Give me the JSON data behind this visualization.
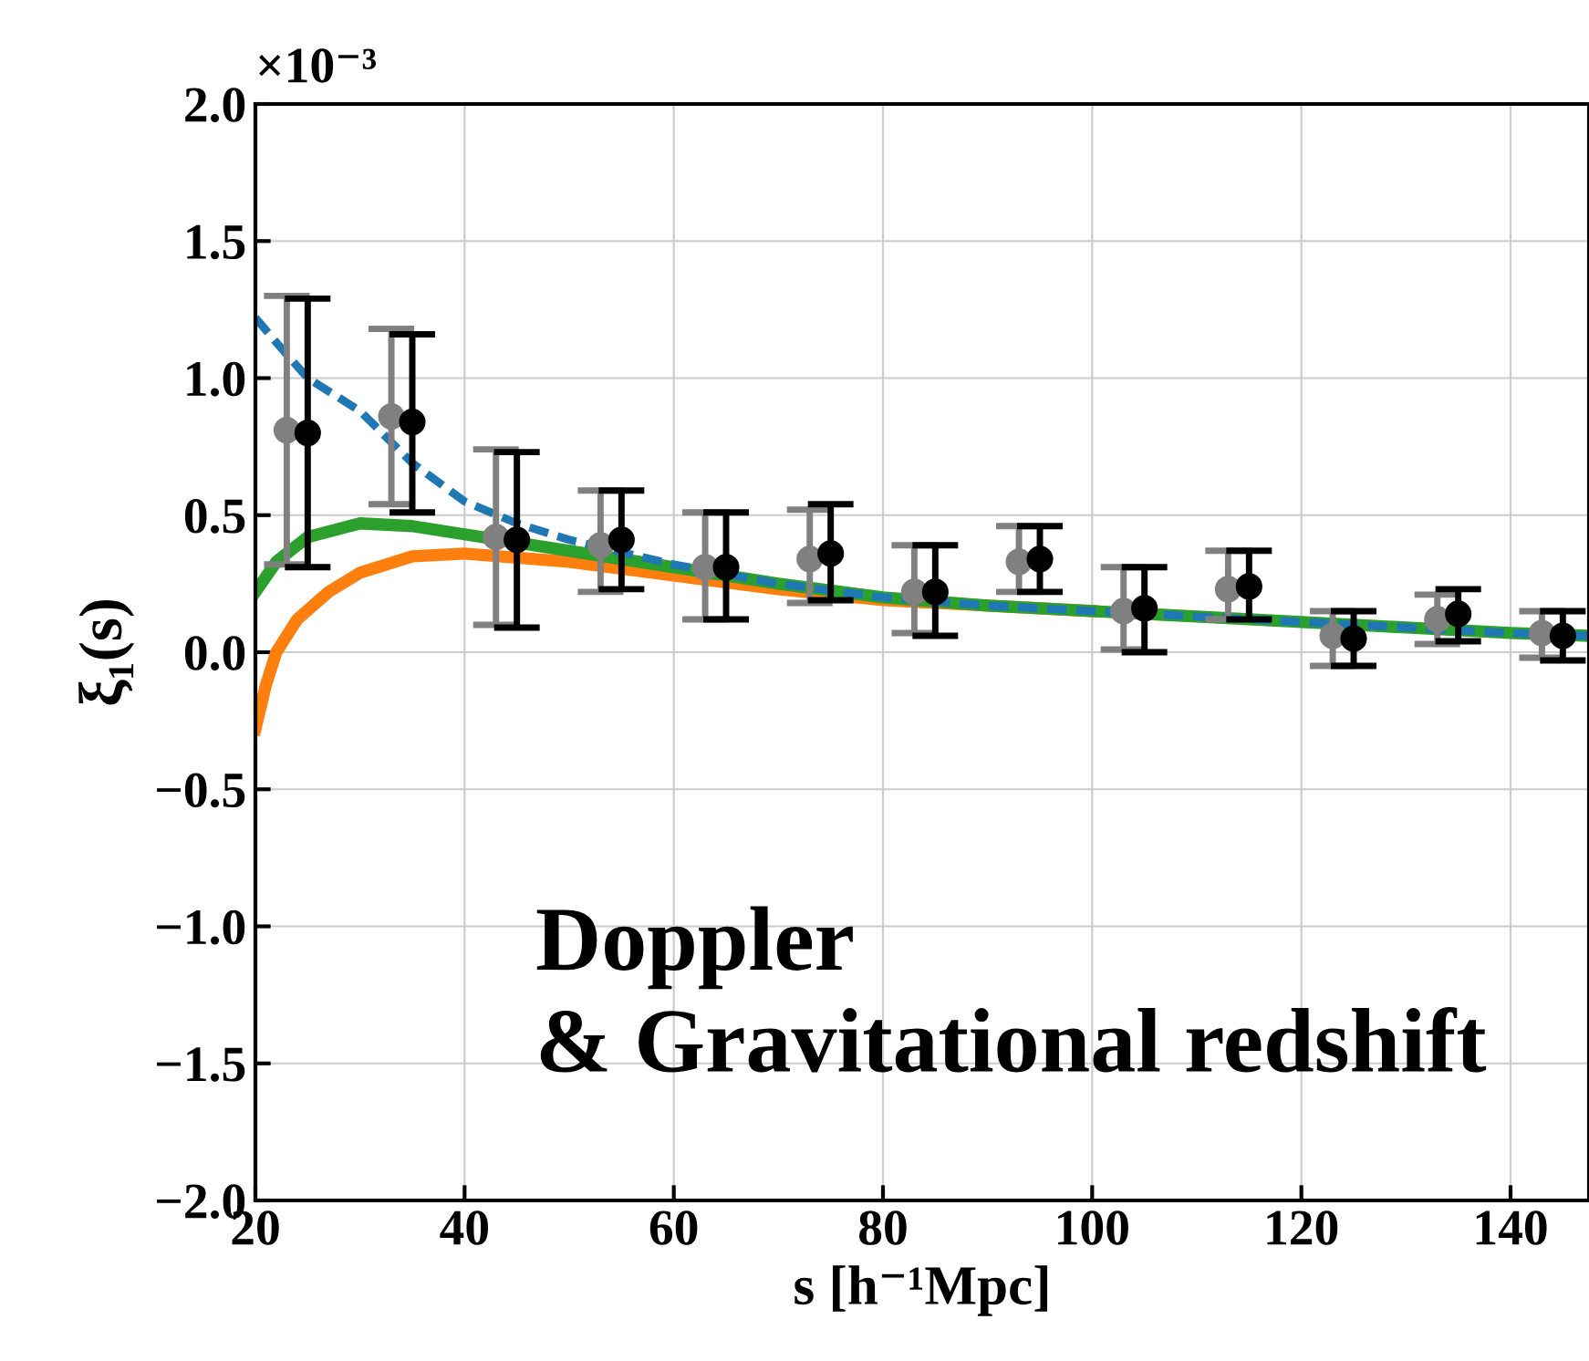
{
  "chart_data": {
    "type": "line",
    "xlabel": "s [h⁻¹Mpc]",
    "ylabel": "ξ₁(s)",
    "annotations": [
      "×10⁻³",
      "Doppler\n& Gravitational redshift"
    ],
    "xlim": [
      20,
      147.5
    ],
    "xticks": [
      20,
      40,
      60,
      80,
      100,
      120,
      140
    ],
    "ylim": [
      -2.0,
      2.0
    ],
    "yticks": [
      {
        "value": -2.0,
        "label": "−2.0"
      },
      {
        "value": -1.5,
        "label": "−1.5"
      },
      {
        "value": -1.0,
        "label": "−1.0"
      },
      {
        "value": -0.5,
        "label": "−0.5"
      },
      {
        "value": 0.0,
        "label": "0.0"
      },
      {
        "value": 0.5,
        "label": "0.5"
      },
      {
        "value": 1.0,
        "label": "1.0"
      },
      {
        "value": 1.5,
        "label": "1.5"
      },
      {
        "value": 2.0,
        "label": "2.0"
      }
    ],
    "grid": true,
    "legend": false,
    "series": [
      {
        "color": "#1f77b4",
        "line_style": "dashed",
        "marker": "none",
        "x": [
          20,
          22,
          25,
          30,
          35,
          40,
          45,
          50,
          60,
          70,
          80,
          90,
          100,
          110,
          120,
          130,
          140,
          147.5
        ],
        "values": [
          1.22,
          1.13,
          1.0,
          0.88,
          0.69,
          0.55,
          0.47,
          0.41,
          0.32,
          0.25,
          0.2,
          0.17,
          0.15,
          0.13,
          0.11,
          0.09,
          0.07,
          0.06
        ]
      },
      {
        "color": "#ff7f0e",
        "line_style": "solid",
        "marker": "none",
        "x": [
          20,
          21,
          22,
          24,
          27,
          30,
          35,
          40,
          50,
          60,
          70,
          80,
          90,
          100
        ],
        "values": [
          -0.28,
          -0.12,
          0.0,
          0.12,
          0.22,
          0.29,
          0.35,
          0.36,
          0.33,
          0.28,
          0.23,
          0.19,
          0.17,
          0.15
        ]
      },
      {
        "color": "#2ca02c",
        "line_style": "solid",
        "marker": "none",
        "x": [
          20,
          22,
          25,
          30,
          35,
          40,
          50,
          60,
          70,
          80,
          90,
          100,
          110,
          120,
          130,
          140,
          147.5
        ],
        "values": [
          0.22,
          0.33,
          0.42,
          0.47,
          0.46,
          0.43,
          0.37,
          0.31,
          0.25,
          0.2,
          0.17,
          0.15,
          0.13,
          0.11,
          0.09,
          0.07,
          0.06
        ]
      },
      {
        "type": "scatter",
        "color": "#808080",
        "marker": "circle",
        "x": [
          23,
          33,
          43,
          53,
          63,
          73,
          83,
          93,
          103,
          113,
          123,
          133,
          143
        ],
        "values": [
          0.81,
          0.86,
          0.42,
          0.39,
          0.31,
          0.34,
          0.22,
          0.33,
          0.15,
          0.23,
          0.06,
          0.12,
          0.07
        ],
        "errors": [
          [
            0.32,
            1.3
          ],
          [
            0.54,
            1.18
          ],
          [
            0.1,
            0.74
          ],
          [
            0.22,
            0.59
          ],
          [
            0.12,
            0.51
          ],
          [
            0.18,
            0.52
          ],
          [
            0.07,
            0.39
          ],
          [
            0.22,
            0.46
          ],
          [
            0.01,
            0.31
          ],
          [
            0.12,
            0.37
          ],
          [
            -0.05,
            0.15
          ],
          [
            0.03,
            0.21
          ],
          [
            -0.02,
            0.15
          ]
        ]
      },
      {
        "type": "scatter",
        "color": "#000000",
        "marker": "circle",
        "x": [
          25,
          35,
          45,
          55,
          65,
          75,
          85,
          95,
          105,
          115,
          125,
          135,
          145
        ],
        "values": [
          0.8,
          0.84,
          0.41,
          0.41,
          0.31,
          0.36,
          0.22,
          0.34,
          0.16,
          0.24,
          0.05,
          0.14,
          0.06
        ],
        "errors": [
          [
            0.31,
            1.29
          ],
          [
            0.51,
            1.16
          ],
          [
            0.09,
            0.73
          ],
          [
            0.23,
            0.59
          ],
          [
            0.12,
            0.51
          ],
          [
            0.19,
            0.54
          ],
          [
            0.06,
            0.39
          ],
          [
            0.22,
            0.46
          ],
          [
            0.0,
            0.31
          ],
          [
            0.12,
            0.37
          ],
          [
            -0.05,
            0.15
          ],
          [
            0.04,
            0.23
          ],
          [
            -0.03,
            0.15
          ]
        ]
      }
    ]
  }
}
